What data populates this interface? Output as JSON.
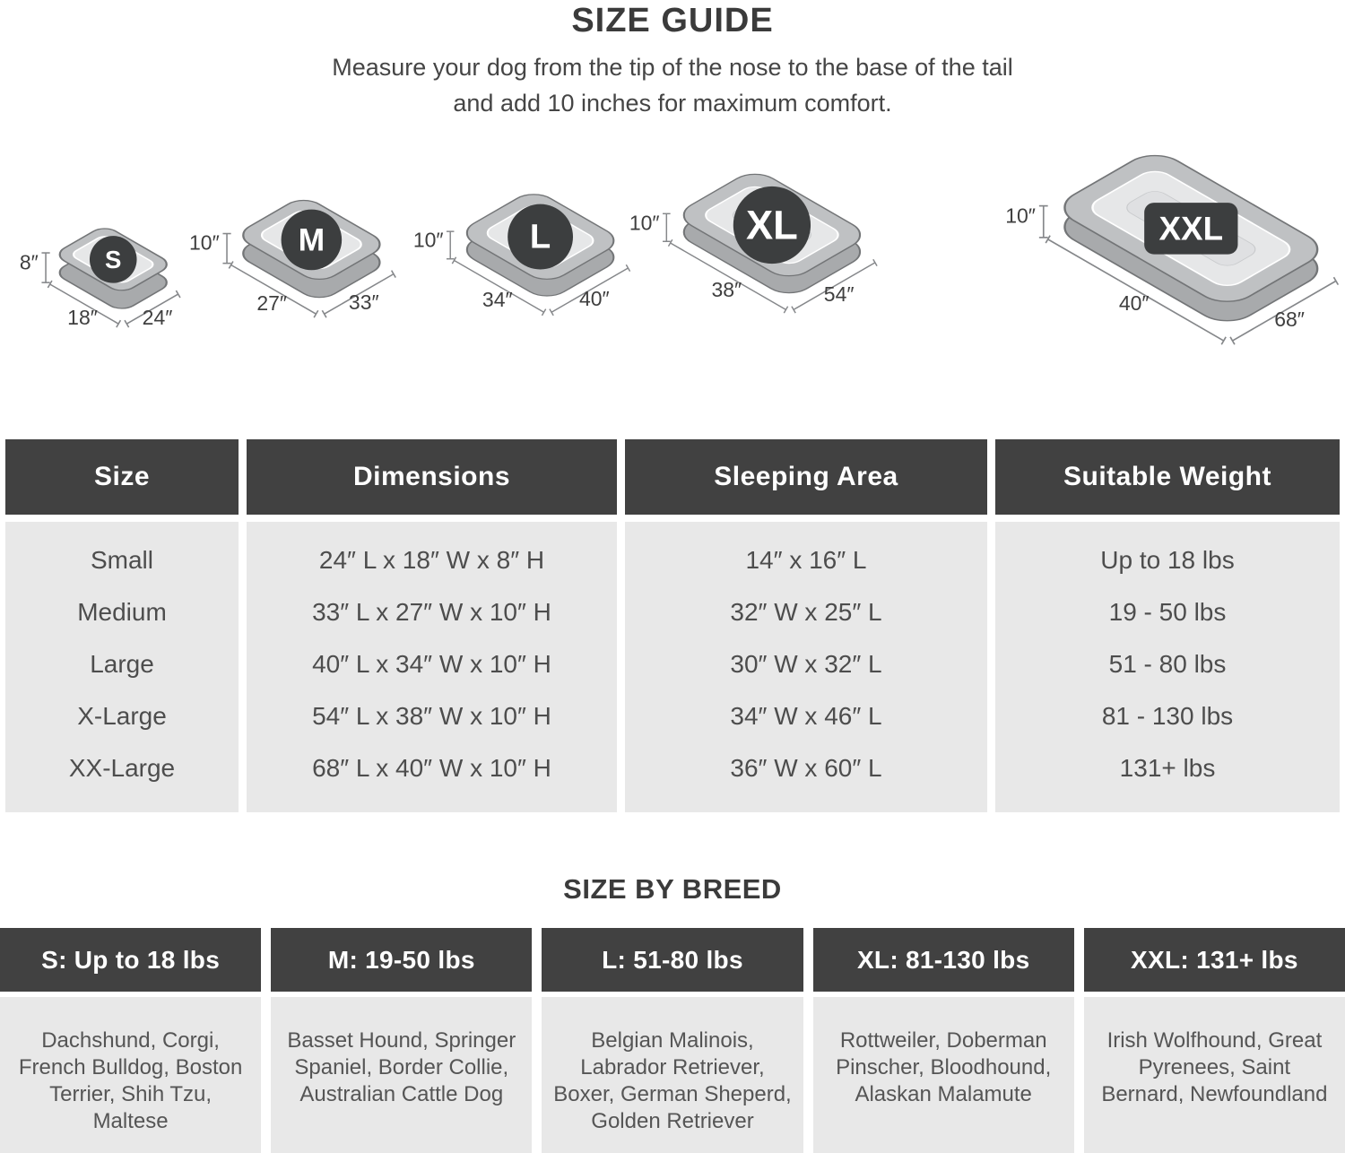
{
  "header": {
    "title": "SIZE GUIDE",
    "subtitle_line1": "Measure your dog from the tip of the nose to the base of the tail",
    "subtitle_line2": "and add 10 inches for maximum comfort."
  },
  "beds": [
    {
      "label": "S",
      "height": "8″",
      "width": "18″",
      "length": "24″"
    },
    {
      "label": "M",
      "height": "10″",
      "width": "27″",
      "length": "33″"
    },
    {
      "label": "L",
      "height": "10″",
      "width": "34″",
      "length": "40″"
    },
    {
      "label": "XL",
      "height": "10″",
      "width": "38″",
      "length": "54″"
    },
    {
      "label": "XXL",
      "height": "10″",
      "width": "40″",
      "length": "68″"
    }
  ],
  "size_table": {
    "columns": [
      "Size",
      "Dimensions",
      "Sleeping Area",
      "Suitable Weight"
    ],
    "rows": [
      [
        "Small",
        "24″ L x 18″ W x 8″ H",
        "14″ x 16″ L",
        "Up to 18 lbs"
      ],
      [
        "Medium",
        "33″ L x 27″ W x 10″ H",
        "32″ W x 25″ L",
        "19 - 50 lbs"
      ],
      [
        "Large",
        "40″ L x 34″ W x 10″ H",
        "30″ W x 32″ L",
        "51 - 80 lbs"
      ],
      [
        "X-Large",
        "54″ L x 38″ W x 10″ H",
        "34″ W x 46″ L",
        "81 - 130 lbs"
      ],
      [
        "XX-Large",
        "68″ L x 40″ W x 10″ H",
        "36″ W x 60″ L",
        "131+ lbs"
      ]
    ]
  },
  "breed_section": {
    "title": "SIZE BY BREED",
    "columns": [
      {
        "header": "S: Up to 18 lbs",
        "breeds": "Dachshund, Corgi, French Bulldog, Boston Terrier, Shih Tzu, Maltese"
      },
      {
        "header": "M: 19-50 lbs",
        "breeds": "Basset Hound, Springer Spaniel, Border Collie, Australian Cattle Dog"
      },
      {
        "header": "L: 51-80 lbs",
        "breeds": "Belgian Malinois, Labrador Retriever, Boxer, German Sheperd, Golden Retriever"
      },
      {
        "header": "XL: 81-130 lbs",
        "breeds": "Rottweiler, Doberman Pinscher, Bloodhound, Alaskan Malamute"
      },
      {
        "header": "XXL: 131+ lbs",
        "breeds": "Irish Wolfhound, Great Pyrenees, Saint Bernard, Newfoundland"
      }
    ]
  },
  "colors": {
    "header_bg": "#414141",
    "header_text": "#ffffff",
    "cell_bg": "#e8e8e8",
    "cell_text": "#4d4d4d",
    "breed_text": "#555555",
    "bed_rim": "#bfc1c3",
    "bed_base": "#a8aaac",
    "bed_inner": "#e6e7e8",
    "badge_bg": "#3c3e3f"
  }
}
